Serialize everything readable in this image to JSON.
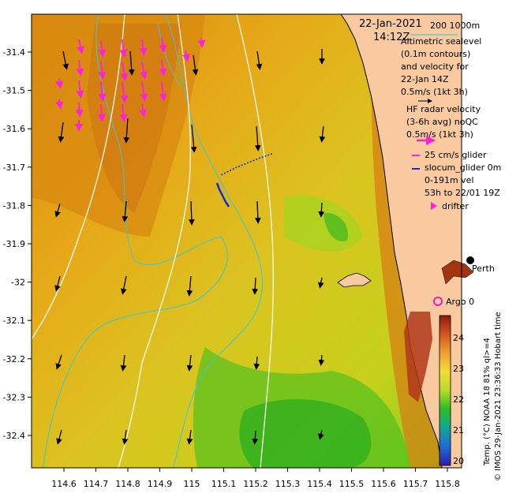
{
  "header": {
    "date": "22-Jan-2021",
    "time": "14:12Z",
    "scale_label": "200 1000m"
  },
  "legend": {
    "altimetric": [
      "Altimetric sealevel",
      "(0.1m contours)",
      "and velocity for",
      "22-Jan 14Z",
      "0.5m/s (1kt 3h)"
    ],
    "hf_radar": [
      "HF radar velocity",
      "(3-6h avg) noQC",
      "0.5m/s (1kt 3h)"
    ],
    "glider": [
      "25 cm/s glider",
      "slocum_glider 0m",
      "0-191m vel",
      "53h to 22/01 19Z"
    ],
    "drifter": "drifter",
    "argo": "Argo 0",
    "city": "Perth"
  },
  "axes": {
    "x_ticks": [
      "114.6",
      "114.7",
      "114.8",
      "114.9",
      "115",
      "115.1",
      "115.2",
      "115.3",
      "115.4",
      "115.5",
      "115.6",
      "115.7",
      "115.8"
    ],
    "y_ticks": [
      "-31.4",
      "-31.5",
      "-31.6",
      "-31.7",
      "-31.8",
      "-31.9",
      "-32",
      "-32.1",
      "-32.2",
      "-32.3",
      "-32.4"
    ]
  },
  "colorbar": {
    "ticks": [
      "24",
      "23",
      "22",
      "21",
      "20"
    ],
    "label": "Temp. (°C) NOAA 18 81% ql>=4",
    "colors": [
      "#8a1c0c",
      "#b8451a",
      "#e27f2a",
      "#f2b234",
      "#f5e23c",
      "#c7e030",
      "#6fd02a",
      "#1fb41e",
      "#12a36a",
      "#1c7fd8",
      "#2742c9",
      "#2b1fa8"
    ]
  },
  "credit": "© IMOS 29-Jan-2021 23:36:33 Hobart time",
  "colors": {
    "land": "#f9c9a0",
    "contour_isobath": "#38c8d8",
    "sealevel_contour": "#ffffff",
    "altimetry_arrow": "#000000",
    "hf_radar_arrow": "#ff22dd",
    "glider_track": "#0a2fd8",
    "argo": "#e020c0"
  }
}
